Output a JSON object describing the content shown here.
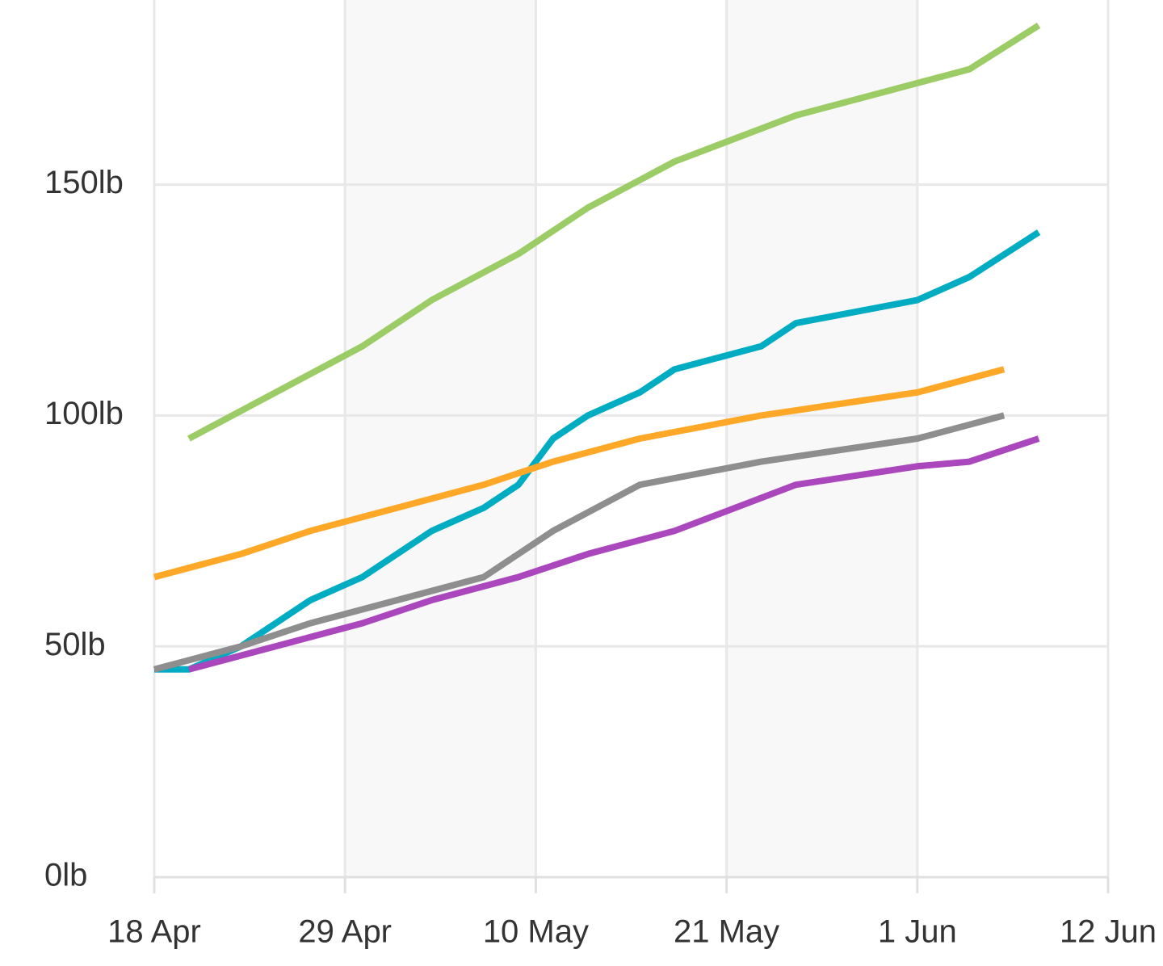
{
  "chart_data": {
    "type": "line",
    "xlim": [
      "18 Apr",
      "12 Jun"
    ],
    "xticks": [
      "18 Apr",
      "29 Apr",
      "10 May",
      "21 May",
      "1 Jun",
      "12 Jun"
    ],
    "ylim": [
      0,
      190
    ],
    "yticks": [
      {
        "value": 0,
        "label": "0lb"
      },
      {
        "value": 50,
        "label": "50lb"
      },
      {
        "value": 100,
        "label": "100lb"
      },
      {
        "value": 150,
        "label": "150lb"
      }
    ],
    "grid": true,
    "series": [
      {
        "color": "#9ccc65",
        "x": [
          "20 Apr",
          "30 Apr",
          "4 May",
          "9 May",
          "13 May",
          "18 May",
          "25 May",
          "1 Jun",
          "4 Jun",
          "8 Jun"
        ],
        "values": [
          95,
          115,
          125,
          135,
          145,
          155,
          165,
          172,
          175,
          184.5
        ]
      },
      {
        "color": "#00acc1",
        "x": [
          "18 Apr",
          "20 Apr",
          "23 Apr",
          "27 Apr",
          "30 Apr",
          "4 May",
          "7 May",
          "9 May",
          "11 May",
          "13 May",
          "16 May",
          "18 May",
          "23 May",
          "25 May",
          "1 Jun",
          "4 Jun",
          "8 Jun"
        ],
        "values": [
          45,
          45,
          50,
          60,
          65,
          75,
          80,
          85,
          95,
          100,
          105,
          110,
          115,
          120,
          125,
          130,
          139.7
        ]
      },
      {
        "color": "#ffa726",
        "x": [
          "18 Apr",
          "23 Apr",
          "27 Apr",
          "7 May",
          "11 May",
          "16 May",
          "23 May",
          "1 Jun",
          "6 Jun"
        ],
        "values": [
          65,
          70,
          75,
          85,
          90,
          95,
          100,
          105,
          110
        ]
      },
      {
        "color": "#8e8e8e",
        "x": [
          "18 Apr",
          "23 Apr",
          "27 Apr",
          "7 May",
          "11 May",
          "16 May",
          "23 May",
          "1 Jun",
          "6 Jun"
        ],
        "values": [
          45,
          50,
          55,
          65,
          75,
          85,
          90,
          95,
          100
        ]
      },
      {
        "color": "#ab47bc",
        "x": [
          "20 Apr",
          "27 Apr",
          "30 Apr",
          "4 May",
          "9 May",
          "13 May",
          "18 May",
          "25 May",
          "1 Jun",
          "4 Jun",
          "8 Jun"
        ],
        "values": [
          45,
          52,
          55,
          60,
          65,
          70,
          75,
          85,
          89,
          90,
          95
        ]
      }
    ]
  }
}
